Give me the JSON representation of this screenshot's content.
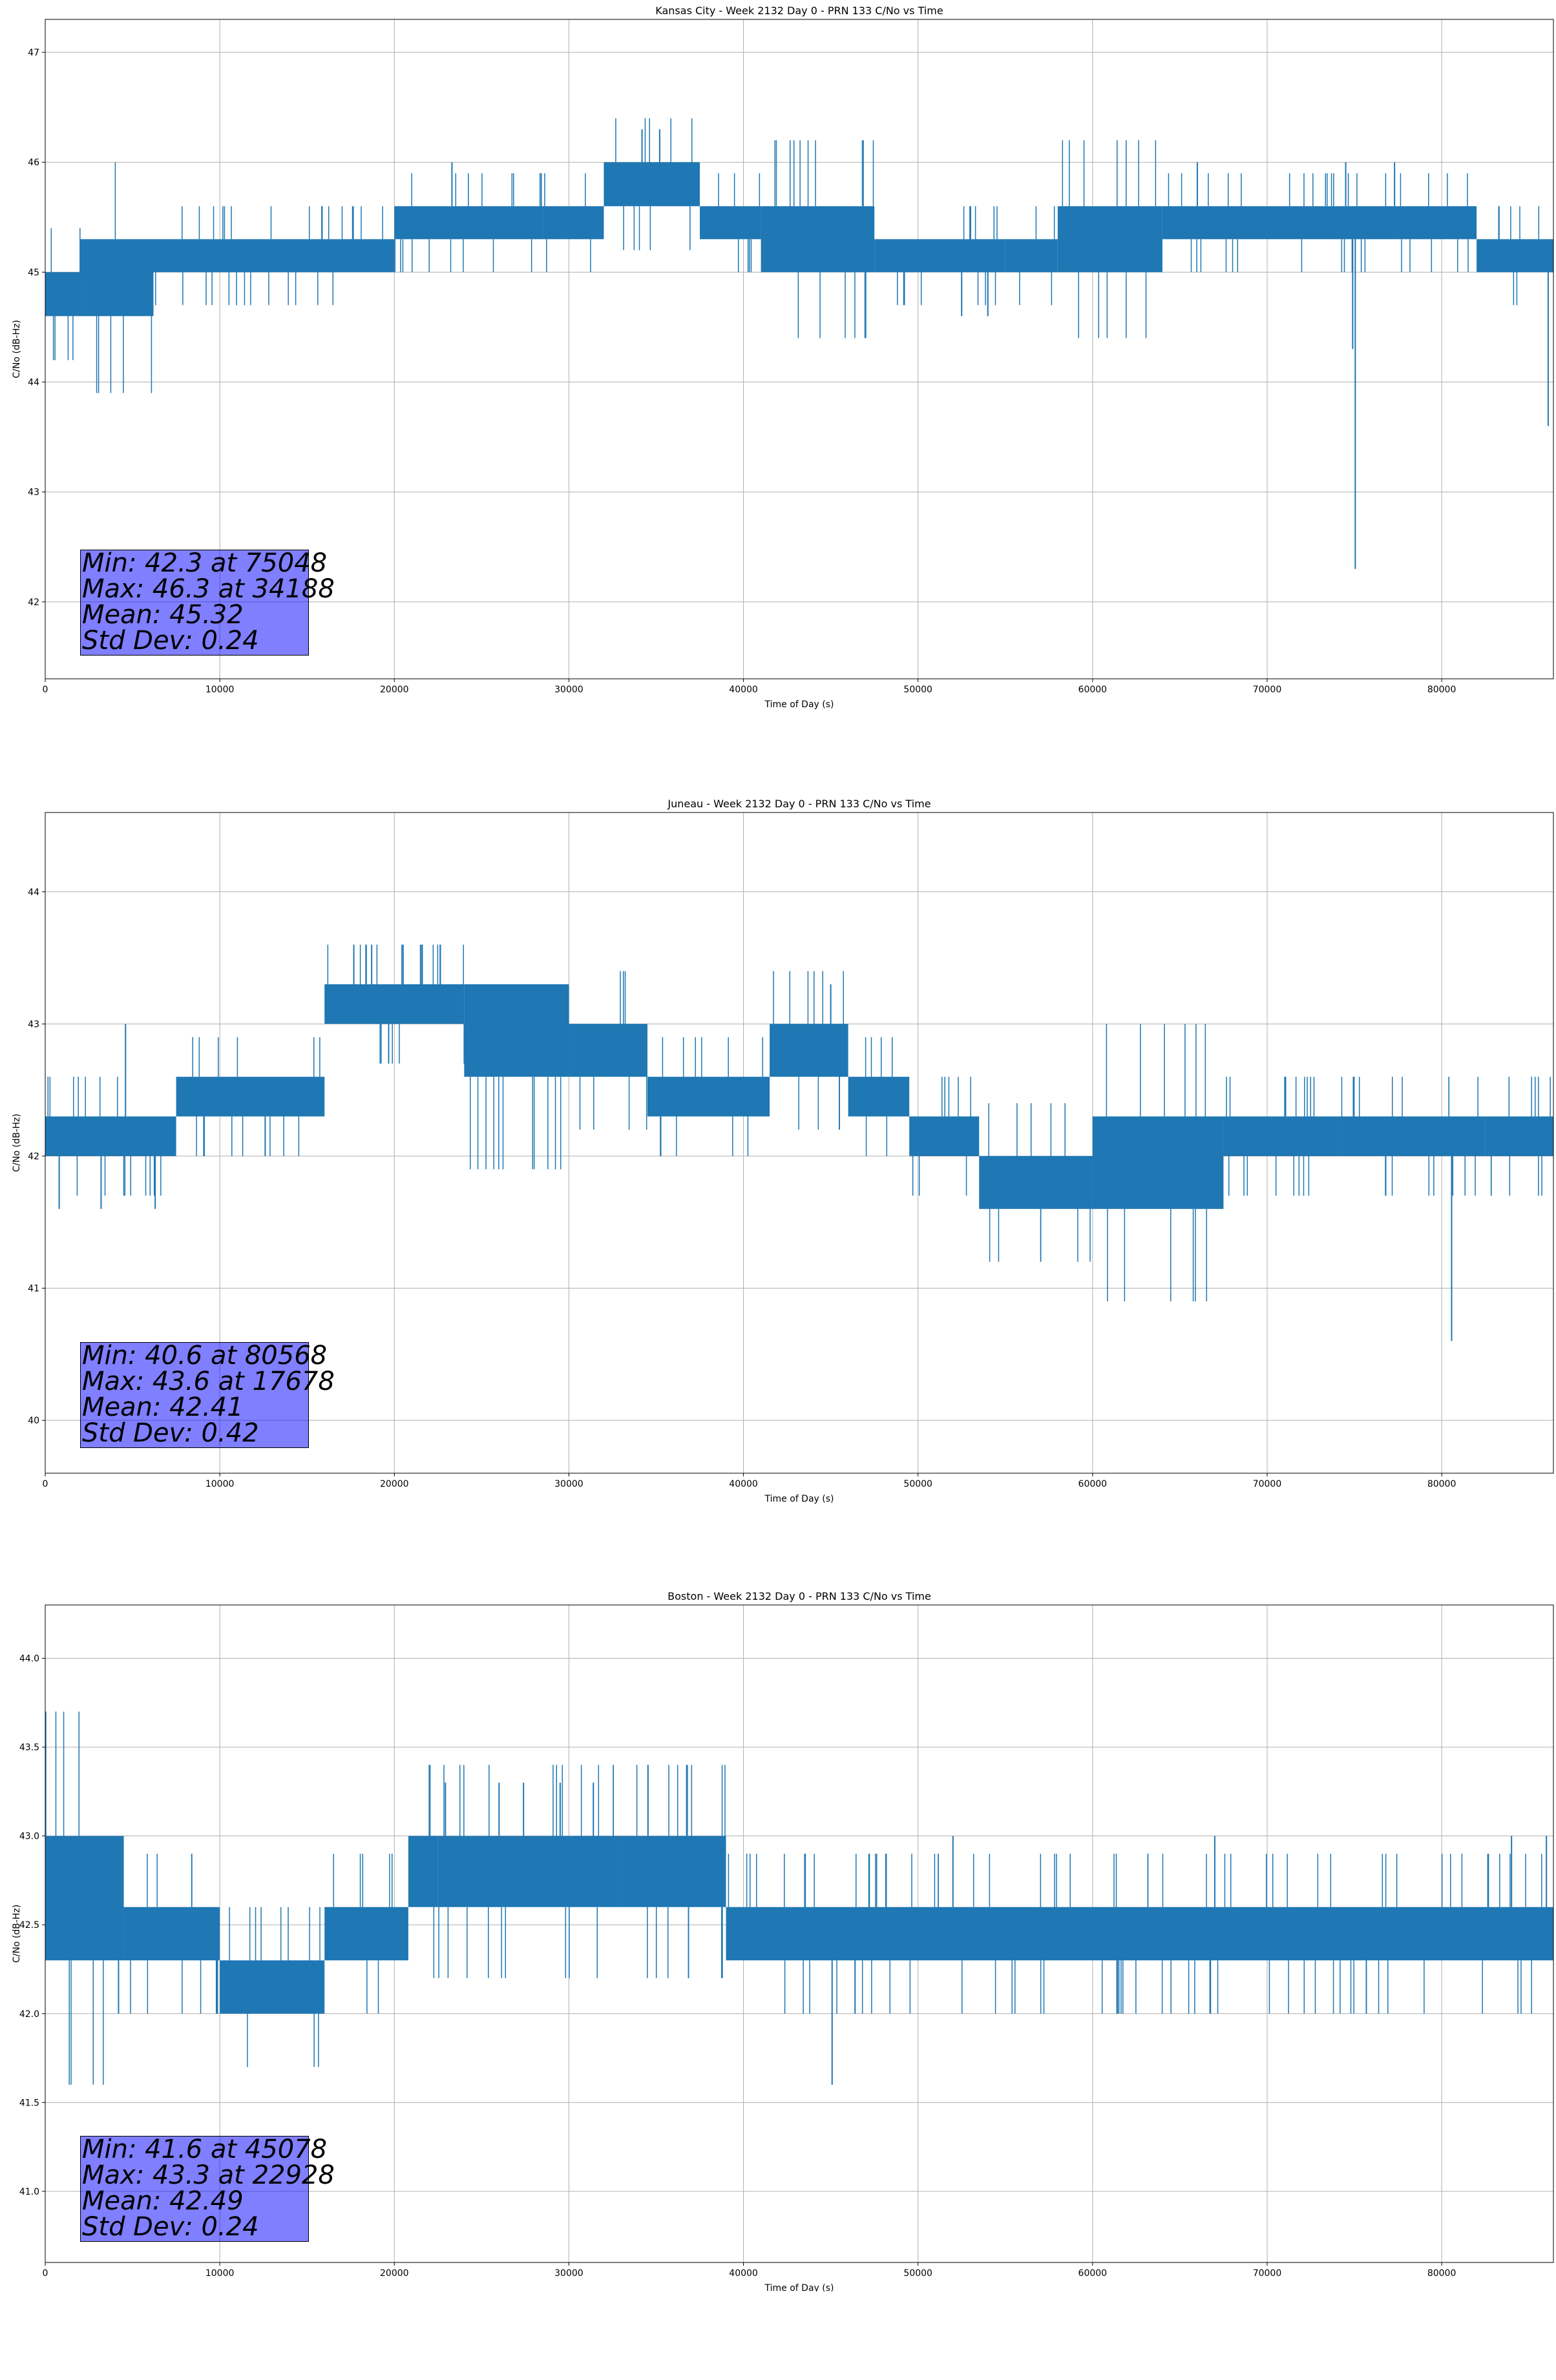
{
  "chart_data": [
    {
      "type": "line",
      "title": "Kansas City - Week 2132 Day 0 - PRN 133 C/No vs Time",
      "xlabel": "Time of Day (s)",
      "ylabel": "C/No (dB-Hz)",
      "xlim": [
        0,
        86400
      ],
      "ylim": [
        41.3,
        47.3
      ],
      "xticks": [
        0,
        10000,
        20000,
        30000,
        40000,
        50000,
        60000,
        70000,
        80000
      ],
      "yticks": [
        42,
        43,
        44,
        45,
        46,
        47
      ],
      "ytick_decimals": 0,
      "grid": true,
      "color": "#1f77b4",
      "bands": [
        {
          "x": [
            0,
            2000
          ],
          "y": [
            44.6,
            45.0
          ]
        },
        {
          "x": [
            2000,
            6200
          ],
          "y": [
            44.6,
            45.3
          ]
        },
        {
          "x": [
            6200,
            20000
          ],
          "y": [
            45.0,
            45.3
          ]
        },
        {
          "x": [
            20000,
            28500
          ],
          "y": [
            45.3,
            45.6
          ]
        },
        {
          "x": [
            28500,
            32000
          ],
          "y": [
            45.3,
            45.6
          ]
        },
        {
          "x": [
            32000,
            37500
          ],
          "y": [
            45.6,
            46.0
          ]
        },
        {
          "x": [
            37500,
            41000
          ],
          "y": [
            45.3,
            45.6
          ]
        },
        {
          "x": [
            41000,
            47500
          ],
          "y": [
            45.0,
            45.6
          ]
        },
        {
          "x": [
            47500,
            55000
          ],
          "y": [
            45.0,
            45.3
          ]
        },
        {
          "x": [
            55000,
            58000
          ],
          "y": [
            45.0,
            45.3
          ]
        },
        {
          "x": [
            58000,
            64000
          ],
          "y": [
            45.0,
            45.6
          ]
        },
        {
          "x": [
            64000,
            82000
          ],
          "y": [
            45.3,
            45.6
          ]
        },
        {
          "x": [
            82000,
            86400
          ],
          "y": [
            45.0,
            45.3
          ]
        }
      ],
      "spikes": [
        {
          "x": 23300,
          "y": 46.0
        },
        {
          "x": 34188,
          "y": 46.3
        },
        {
          "x": 35200,
          "y": 46.3
        },
        {
          "x": 66000,
          "y": 46.0
        },
        {
          "x": 74500,
          "y": 46.0
        },
        {
          "x": 77300,
          "y": 46.0
        },
        {
          "x": 75048,
          "y": 42.3
        },
        {
          "x": 74900,
          "y": 44.3
        },
        {
          "x": 86100,
          "y": 43.6
        },
        {
          "x": 54000,
          "y": 44.6
        },
        {
          "x": 52500,
          "y": 44.6
        },
        {
          "x": 6100,
          "y": 44.6
        }
      ],
      "stats": {
        "min": "Min: 42.3 at 75048",
        "max": "Max: 46.3 at 34188",
        "mean": "Mean: 45.32",
        "std": "Std Dev: 0.24"
      }
    },
    {
      "type": "line",
      "title": "Juneau - Week 2132 Day 0 - PRN 133 C/No vs Time",
      "xlabel": "Time of Day (s)",
      "ylabel": "C/No (dB-Hz)",
      "xlim": [
        0,
        86400
      ],
      "ylim": [
        39.6,
        44.6
      ],
      "xticks": [
        0,
        10000,
        20000,
        30000,
        40000,
        50000,
        60000,
        70000,
        80000
      ],
      "yticks": [
        40,
        41,
        42,
        43,
        44
      ],
      "ytick_decimals": 0,
      "grid": true,
      "color": "#1f77b4",
      "bands": [
        {
          "x": [
            0,
            7500
          ],
          "y": [
            42.0,
            42.3
          ]
        },
        {
          "x": [
            7500,
            16000
          ],
          "y": [
            42.3,
            42.6
          ]
        },
        {
          "x": [
            16000,
            24000
          ],
          "y": [
            43.0,
            43.3
          ]
        },
        {
          "x": [
            24000,
            30000
          ],
          "y": [
            42.6,
            43.3
          ]
        },
        {
          "x": [
            30000,
            34500
          ],
          "y": [
            42.6,
            43.0
          ]
        },
        {
          "x": [
            34500,
            41500
          ],
          "y": [
            42.3,
            42.6
          ]
        },
        {
          "x": [
            41500,
            46000
          ],
          "y": [
            42.6,
            43.0
          ]
        },
        {
          "x": [
            46000,
            49500
          ],
          "y": [
            42.3,
            42.6
          ]
        },
        {
          "x": [
            49500,
            53500
          ],
          "y": [
            42.0,
            42.3
          ]
        },
        {
          "x": [
            53500,
            60000
          ],
          "y": [
            41.6,
            42.0
          ]
        },
        {
          "x": [
            60000,
            67500
          ],
          "y": [
            41.6,
            42.3
          ]
        },
        {
          "x": [
            67500,
            74000
          ],
          "y": [
            42.0,
            42.3
          ]
        },
        {
          "x": [
            74000,
            82500
          ],
          "y": [
            42.0,
            42.3
          ]
        },
        {
          "x": [
            82500,
            86400
          ],
          "y": [
            42.0,
            42.3
          ]
        }
      ],
      "spikes": [
        {
          "x": 4600,
          "y": 43.0
        },
        {
          "x": 17678,
          "y": 43.6
        },
        {
          "x": 18700,
          "y": 43.6
        },
        {
          "x": 20500,
          "y": 43.6
        },
        {
          "x": 21500,
          "y": 43.6
        },
        {
          "x": 45000,
          "y": 43.3
        },
        {
          "x": 80568,
          "y": 40.6
        },
        {
          "x": 800,
          "y": 41.6
        },
        {
          "x": 3200,
          "y": 41.6
        },
        {
          "x": 6300,
          "y": 41.6
        },
        {
          "x": 12600,
          "y": 42.0
        }
      ],
      "stats": {
        "min": "Min: 40.6 at 80568",
        "max": "Max: 43.6 at 17678",
        "mean": "Mean: 42.41",
        "std": "Std Dev: 0.42"
      }
    },
    {
      "type": "line",
      "title": "Boston - Week 2132 Day 0 - PRN 133 C/No vs Time",
      "xlabel": "Time of Day (s)",
      "ylabel": "C/No (dB-Hz)",
      "xlim": [
        0,
        86400
      ],
      "ylim": [
        40.6,
        44.3
      ],
      "xticks": [
        0,
        10000,
        20000,
        30000,
        40000,
        50000,
        60000,
        70000,
        80000
      ],
      "yticks": [
        41.0,
        41.5,
        42.0,
        42.5,
        43.0,
        43.5,
        44.0
      ],
      "ytick_decimals": 1,
      "grid": true,
      "color": "#1f77b4",
      "bands": [
        {
          "x": [
            0,
            4500
          ],
          "y": [
            42.3,
            43.0
          ]
        },
        {
          "x": [
            4500,
            10000
          ],
          "y": [
            42.3,
            42.6
          ]
        },
        {
          "x": [
            10000,
            16000
          ],
          "y": [
            42.0,
            42.3
          ]
        },
        {
          "x": [
            16000,
            20800
          ],
          "y": [
            42.3,
            42.6
          ]
        },
        {
          "x": [
            20800,
            22500
          ],
          "y": [
            42.6,
            43.0
          ]
        },
        {
          "x": [
            22500,
            33000
          ],
          "y": [
            42.6,
            43.0
          ]
        },
        {
          "x": [
            33000,
            39000
          ],
          "y": [
            42.6,
            43.0
          ]
        },
        {
          "x": [
            39000,
            86400
          ],
          "y": [
            42.3,
            42.6
          ]
        }
      ],
      "spikes": [
        {
          "x": 22928,
          "y": 43.3
        },
        {
          "x": 26000,
          "y": 43.3
        },
        {
          "x": 27400,
          "y": 43.3
        },
        {
          "x": 29500,
          "y": 43.3
        },
        {
          "x": 31400,
          "y": 43.3
        },
        {
          "x": 45078,
          "y": 41.6
        },
        {
          "x": 4200,
          "y": 42.0
        },
        {
          "x": 52000,
          "y": 43.0
        },
        {
          "x": 67000,
          "y": 43.0
        },
        {
          "x": 84000,
          "y": 43.0
        },
        {
          "x": 86000,
          "y": 43.0
        }
      ],
      "stats": {
        "min": "Min: 41.6 at 45078",
        "max": "Max: 43.3 at 22928",
        "mean": "Mean: 42.49",
        "std": "Std Dev: 0.24"
      }
    }
  ]
}
